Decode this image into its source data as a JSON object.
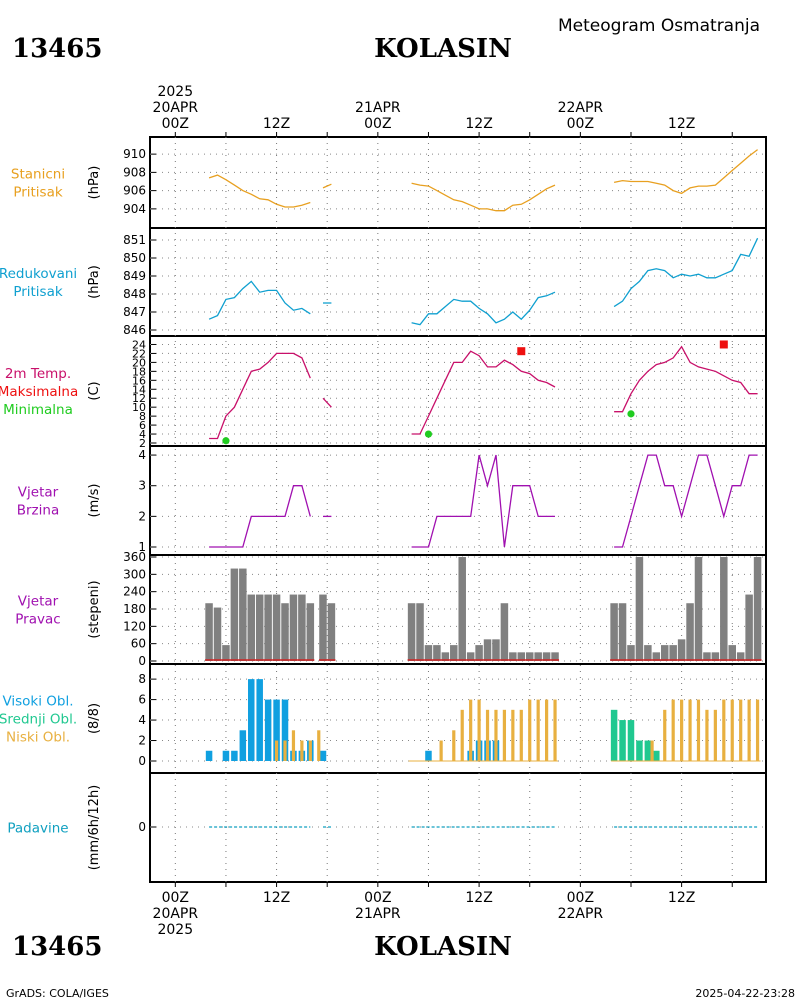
{
  "header": {
    "station_id": "13465",
    "station_name": "KOLASIN",
    "subtitle": "Meteogram Osmatranja",
    "footer_left": "GrADS: COLA/IGES",
    "footer_right": "2025-04-22-23:28"
  },
  "time_axis": {
    "top_labels": [
      {
        "hour": 0,
        "lines": [
          "2025",
          "20APR",
          "00Z"
        ]
      },
      {
        "hour": 12,
        "lines": [
          "12Z"
        ]
      },
      {
        "hour": 24,
        "lines": [
          "21APR",
          "00Z"
        ]
      },
      {
        "hour": 36,
        "lines": [
          "12Z"
        ]
      },
      {
        "hour": 48,
        "lines": [
          "22APR",
          "00Z"
        ]
      },
      {
        "hour": 60,
        "lines": [
          "12Z"
        ]
      }
    ],
    "bottom_labels": [
      {
        "hour": 0,
        "lines": [
          "00Z",
          "20APR",
          "2025"
        ]
      },
      {
        "hour": 12,
        "lines": [
          "12Z"
        ]
      },
      {
        "hour": 24,
        "lines": [
          "00Z",
          "21APR"
        ]
      },
      {
        "hour": 36,
        "lines": [
          "12Z"
        ]
      },
      {
        "hour": 48,
        "lines": [
          "00Z",
          "22APR"
        ]
      },
      {
        "hour": 60,
        "lines": [
          "12Z"
        ]
      }
    ],
    "range_hours": [
      -3,
      70
    ]
  },
  "colors": {
    "pressure": "#e8a020",
    "reduced": "#10a0d0",
    "temp": "#c8106a",
    "max": "#ee1010",
    "min": "#20cc20",
    "wind": "#a010b0",
    "dir_bar": "#808080",
    "dir_base": "#d02020",
    "high_cloud": "#10a0e0",
    "mid_cloud": "#20c890",
    "low_cloud": "#e8b040",
    "precip": "#10a0c0"
  },
  "chart_data": [
    {
      "type": "line",
      "panel": "pressure",
      "label_lines": [
        "Stanicni",
        "Pritisak"
      ],
      "label_color": "#e8a020",
      "ylabel": "(hPa)",
      "ylim": [
        903,
        911
      ],
      "yticks": [
        904,
        906,
        908,
        910
      ],
      "series": [
        {
          "x": [
            4,
            5,
            6,
            7,
            8,
            9,
            10,
            11,
            12,
            13,
            14,
            15,
            16
          ],
          "y": [
            907.4,
            907.7,
            907.2,
            906.6,
            906.0,
            905.6,
            905.1,
            905.0,
            904.5,
            904.2,
            904.2,
            904.4,
            904.7
          ]
        },
        {
          "x": [
            17.5,
            18.5
          ],
          "y": [
            906.3,
            906.7
          ]
        },
        {
          "x": [
            28,
            29,
            30,
            31,
            32,
            33,
            34,
            35,
            36,
            37,
            38,
            39,
            40,
            41,
            42,
            43,
            44,
            45
          ],
          "y": [
            906.8,
            906.6,
            906.5,
            906.0,
            905.5,
            905.0,
            904.8,
            904.4,
            904.0,
            904.0,
            903.8,
            903.8,
            904.4,
            904.5,
            905.0,
            905.6,
            906.2,
            906.6
          ]
        },
        {
          "x": [
            52,
            53,
            54,
            55,
            56,
            57,
            58,
            59,
            60,
            61,
            62,
            63,
            64,
            65,
            66,
            67,
            68,
            69
          ],
          "y": [
            906.9,
            907.1,
            907.0,
            907.0,
            907.0,
            906.8,
            906.6,
            906.0,
            905.7,
            906.3,
            906.5,
            906.5,
            906.6,
            907.4,
            908.2,
            909.0,
            909.8,
            910.5
          ]
        }
      ]
    },
    {
      "type": "line",
      "panel": "reduced",
      "label_lines": [
        "Redukovani",
        "Pritisak"
      ],
      "label_color": "#10a0d0",
      "ylabel": "(hPa)",
      "ylim": [
        846,
        851.5
      ],
      "yticks": [
        846,
        847,
        848,
        849,
        850,
        851
      ],
      "series": [
        {
          "x": [
            4,
            5,
            6,
            7,
            8,
            9,
            10,
            11,
            12,
            13,
            14,
            15,
            16
          ],
          "y": [
            846.6,
            846.8,
            847.7,
            847.8,
            848.3,
            848.7,
            848.1,
            848.2,
            848.2,
            847.5,
            847.1,
            847.2,
            846.9
          ]
        },
        {
          "x": [
            17.5,
            18.5
          ],
          "y": [
            847.5,
            847.5
          ]
        },
        {
          "x": [
            28,
            29,
            30,
            31,
            32,
            33,
            34,
            35,
            36,
            37,
            38,
            39,
            40,
            41,
            42,
            43,
            44,
            45
          ],
          "y": [
            846.4,
            846.3,
            846.9,
            846.9,
            847.3,
            847.7,
            847.6,
            847.6,
            847.2,
            846.9,
            846.4,
            846.6,
            847.0,
            846.6,
            847.1,
            847.8,
            847.9,
            848.1
          ]
        },
        {
          "x": [
            52,
            53,
            54,
            55,
            56,
            57,
            58,
            59,
            60,
            61,
            62,
            63,
            64,
            65,
            66,
            67,
            68,
            69
          ],
          "y": [
            847.3,
            847.6,
            848.3,
            848.7,
            849.3,
            849.4,
            849.3,
            848.9,
            849.1,
            849.0,
            849.1,
            848.9,
            848.9,
            849.1,
            849.3,
            850.2,
            850.1,
            851.1
          ]
        }
      ]
    },
    {
      "type": "line",
      "panel": "temperature",
      "label_lines": [
        "2m Temp.",
        "Maksimalna",
        "Minimalna"
      ],
      "label_colors": [
        "#c8106a",
        "#ee1010",
        "#20cc20"
      ],
      "ylabel": "(C)",
      "ylim": [
        2,
        25
      ],
      "yticks": [
        2,
        4,
        6,
        8,
        10,
        12,
        14,
        16,
        18,
        20,
        22,
        24
      ],
      "series": [
        {
          "x": [
            4,
            5,
            6,
            7,
            8,
            9,
            10,
            11,
            12,
            13,
            14,
            15,
            16
          ],
          "y": [
            3,
            3,
            8,
            10,
            14,
            18,
            18.5,
            20,
            22,
            22,
            22,
            21,
            16.5
          ]
        },
        {
          "x": [
            17.5,
            18.5
          ],
          "y": [
            12,
            10
          ]
        },
        {
          "x": [
            28,
            29,
            30,
            31,
            32,
            33,
            34,
            35,
            36,
            37,
            38,
            39,
            40,
            41,
            42,
            43,
            44,
            45
          ],
          "y": [
            4,
            4,
            8,
            12,
            16,
            20,
            20,
            22.5,
            21.5,
            19,
            19,
            20.5,
            19.5,
            18,
            17.5,
            16,
            15.5,
            14.5
          ]
        },
        {
          "x": [
            52,
            53,
            54,
            55,
            56,
            57,
            58,
            59,
            60,
            61,
            62,
            63,
            64,
            65,
            66,
            67,
            68,
            69
          ],
          "y": [
            9,
            9,
            13,
            16,
            18,
            19.5,
            20,
            21,
            23.5,
            20,
            19,
            18.5,
            18,
            17,
            16,
            15.5,
            13,
            13
          ]
        }
      ],
      "maxima": [
        {
          "x": 41,
          "y": 22.5
        },
        {
          "x": 65,
          "y": 24
        }
      ],
      "minima": [
        {
          "x": 6,
          "y": 2.5
        },
        {
          "x": 30,
          "y": 4
        },
        {
          "x": 54,
          "y": 8.5
        }
      ]
    },
    {
      "type": "line",
      "panel": "wind_speed",
      "label_lines": [
        "Vjetar",
        "Brzina"
      ],
      "label_color": "#a010b0",
      "ylabel": "(m/s)",
      "ylim": [
        1,
        4.1
      ],
      "yticks": [
        1,
        2,
        3,
        4
      ],
      "series": [
        {
          "x": [
            4,
            5,
            6,
            7,
            8,
            9,
            10,
            11,
            12,
            13,
            14,
            15,
            16
          ],
          "y": [
            1,
            1,
            1,
            1,
            1,
            2,
            2,
            2,
            2,
            2,
            3,
            3,
            2
          ]
        },
        {
          "x": [
            17.5,
            18.5
          ],
          "y": [
            2,
            2
          ]
        },
        {
          "x": [
            28,
            29,
            30,
            31,
            32,
            33,
            34,
            35,
            36,
            37,
            38,
            39,
            40,
            41,
            42,
            43,
            44,
            45
          ],
          "y": [
            1,
            1,
            1,
            2,
            2,
            2,
            2,
            2,
            4,
            3,
            4,
            1,
            3,
            3,
            3,
            2,
            2,
            2
          ]
        },
        {
          "x": [
            52,
            53,
            54,
            55,
            56,
            57,
            58,
            59,
            60,
            61,
            62,
            63,
            64,
            65,
            66,
            67,
            68,
            69
          ],
          "y": [
            1,
            1,
            2,
            3,
            4,
            4,
            3,
            3,
            2,
            3,
            4,
            4,
            3,
            2,
            3,
            3,
            4,
            4
          ]
        }
      ]
    },
    {
      "type": "bar",
      "panel": "wind_direction",
      "label_lines": [
        "Vjetar",
        "Pravac"
      ],
      "label_color": "#a010b0",
      "ylabel": "(stepeni)",
      "ylim": [
        0,
        360
      ],
      "yticks": [
        0,
        60,
        120,
        180,
        240,
        300,
        360
      ],
      "x": [
        4,
        5,
        6,
        7,
        8,
        9,
        10,
        11,
        12,
        13,
        14,
        15,
        16,
        17.5,
        18.5,
        28,
        29,
        30,
        31,
        32,
        33,
        34,
        35,
        36,
        37,
        38,
        39,
        40,
        41,
        42,
        43,
        44,
        45,
        52,
        53,
        54,
        55,
        56,
        57,
        58,
        59,
        60,
        61,
        62,
        63,
        64,
        65,
        66,
        67,
        68,
        69
      ],
      "values": [
        200,
        185,
        55,
        320,
        320,
        230,
        230,
        230,
        230,
        200,
        230,
        230,
        200,
        230,
        200,
        200,
        200,
        55,
        55,
        30,
        55,
        360,
        30,
        55,
        75,
        75,
        200,
        30,
        30,
        30,
        30,
        30,
        30,
        200,
        200,
        55,
        360,
        55,
        30,
        55,
        55,
        75,
        200,
        360,
        30,
        30,
        360,
        55,
        30,
        230,
        360
      ]
    },
    {
      "type": "bar",
      "panel": "clouds",
      "label_lines": [
        "Visoki Obl.",
        "Srednji Obl.",
        "Niski Obl."
      ],
      "label_colors": [
        "#10a0e0",
        "#20c890",
        "#e8b040"
      ],
      "ylabel": "(8/8)",
      "ylim": [
        0,
        8.5
      ],
      "yticks": [
        0,
        2,
        4,
        6,
        8
      ],
      "series": [
        {
          "name": "Visoki Obl.",
          "x": [
            4,
            6,
            7,
            8,
            9,
            10,
            11,
            12,
            13,
            14,
            15,
            16,
            17.5,
            30,
            35,
            36,
            37,
            38
          ],
          "values": [
            1,
            1,
            1,
            3,
            8,
            8,
            6,
            6,
            6,
            1,
            1,
            2,
            1,
            1,
            1,
            2,
            2,
            2
          ]
        },
        {
          "name": "Srednji Obl.",
          "x": [
            52,
            53,
            54,
            55,
            56,
            57
          ],
          "values": [
            5,
            4,
            4,
            2,
            2,
            1
          ]
        },
        {
          "name": "Niski Obl.",
          "x": [
            12,
            13,
            14,
            15,
            16,
            17,
            31.5,
            33,
            34,
            35,
            36,
            37,
            38,
            39,
            40,
            41,
            42,
            43,
            44,
            45,
            56.5,
            58,
            59,
            60,
            61,
            62,
            63,
            64,
            65,
            66,
            67,
            68,
            69
          ],
          "values": [
            2,
            2,
            3,
            2,
            2,
            3,
            2,
            3,
            5,
            6,
            6,
            5,
            5,
            5,
            5,
            5,
            6,
            6,
            6,
            6,
            2,
            5,
            6,
            6,
            6,
            6,
            5,
            5,
            6,
            6,
            6,
            6,
            6
          ]
        }
      ]
    },
    {
      "type": "line",
      "panel": "precipitation",
      "label_lines": [
        "Padavine"
      ],
      "label_color": "#10a0c0",
      "ylabel": "(mm/6h/12h)",
      "ylim": [
        -1,
        1
      ],
      "yticks": [
        0
      ],
      "series": [
        {
          "x": [
            4,
            16
          ],
          "y": [
            0,
            0
          ]
        },
        {
          "x": [
            17.5,
            18.5
          ],
          "y": [
            0,
            0
          ]
        },
        {
          "x": [
            28,
            45
          ],
          "y": [
            0,
            0
          ]
        },
        {
          "x": [
            52,
            69
          ],
          "y": [
            0,
            0
          ]
        }
      ]
    }
  ]
}
